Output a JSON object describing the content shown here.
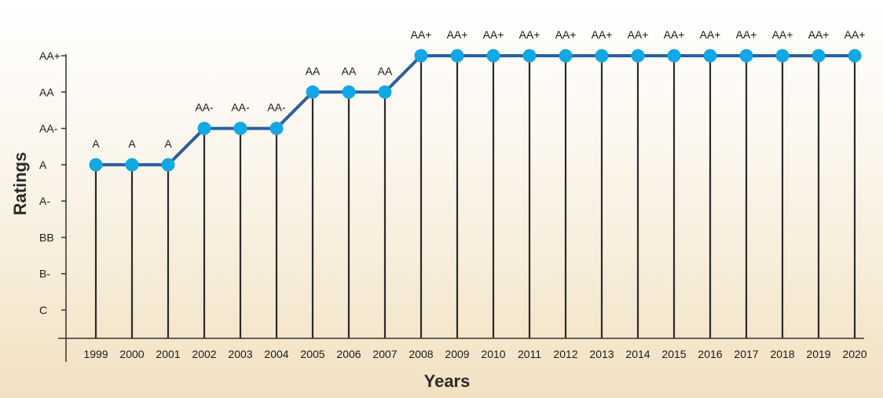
{
  "chart_data": {
    "type": "line",
    "xlabel": "Years",
    "ylabel": "Ratings",
    "x": [
      "1999",
      "2000",
      "2001",
      "2002",
      "2003",
      "2004",
      "2005",
      "2006",
      "2007",
      "2008",
      "2009",
      "2010",
      "2011",
      "2012",
      "2013",
      "2014",
      "2015",
      "2016",
      "2017",
      "2018",
      "2019",
      "2020"
    ],
    "y_categories": [
      "C",
      "B-",
      "BB",
      "A-",
      "A",
      "AA-",
      "AA",
      "AA+"
    ],
    "series": [
      {
        "values": [
          "A",
          "A",
          "A",
          "AA-",
          "AA-",
          "AA-",
          "AA",
          "AA",
          "AA",
          "AA+",
          "AA+",
          "AA+",
          "AA+",
          "AA+",
          "AA+",
          "AA+",
          "AA+",
          "AA+",
          "AA+",
          "AA+",
          "AA+",
          "AA+"
        ]
      }
    ],
    "data_labels": true,
    "drop_lines": true,
    "grid": false,
    "legend": "none"
  },
  "colors": {
    "line": "#2c5f9e",
    "marker": "#10a8e6",
    "drop_line": "#2a2a2a",
    "axis": "#333333"
  }
}
